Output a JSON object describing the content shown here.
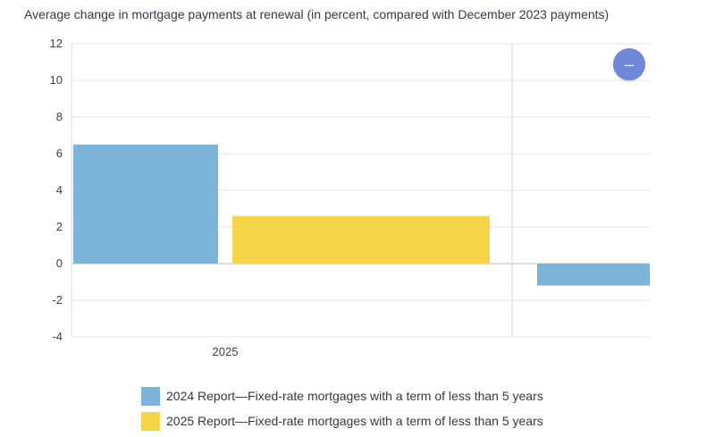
{
  "chart_data": {
    "type": "bar",
    "title": "Average change in mortgage payments at renewal (in percent, compared with December 2023 payments)",
    "xlabel": "",
    "ylabel": "",
    "ylim": [
      -4,
      12
    ],
    "yticks": [
      "12",
      "10",
      "8",
      "6",
      "4",
      "2",
      "0",
      "-2",
      "-4"
    ],
    "categories": [
      "2025",
      ""
    ],
    "series": [
      {
        "name": "2024 Report—Fixed-rate mortgages with a term of less than 5 years",
        "color": "#7db4d9",
        "values": [
          6.5,
          -1.2
        ]
      },
      {
        "name": "2025 Report—Fixed-rate mortgages with a term of less than 5 years",
        "color": "#f5d547",
        "values": [
          2.6,
          null
        ]
      }
    ],
    "grid": true,
    "legend_position": "bottom"
  },
  "controls": {
    "zoom_button_icon": "minus-icon",
    "zoom_button_glyph": "–"
  }
}
